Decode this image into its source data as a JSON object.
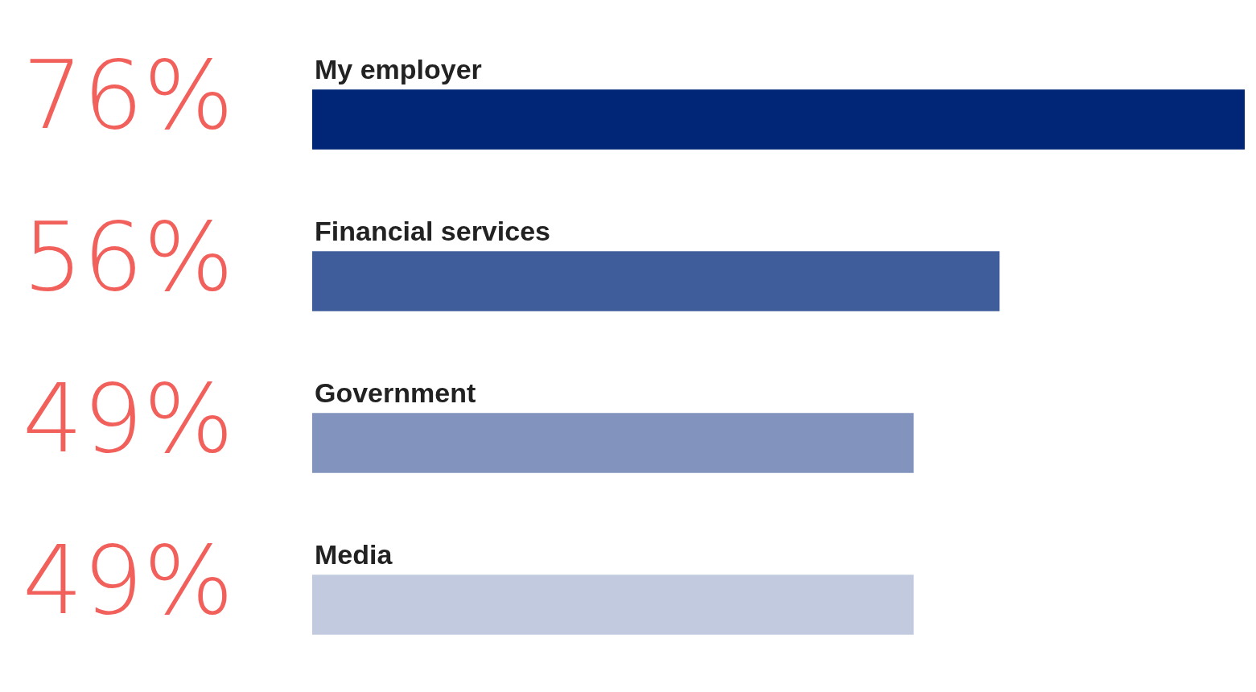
{
  "chart_data": {
    "type": "bar",
    "orientation": "horizontal",
    "categories": [
      "My employer",
      "Financial services",
      "Government",
      "Media"
    ],
    "values": [
      76,
      56,
      49,
      49
    ],
    "colors": [
      "#012677",
      "#3f5d9a",
      "#8294bd",
      "#c1cadf"
    ],
    "value_labels": [
      "76%",
      "56%",
      "49%",
      "49%"
    ],
    "xlim": [
      0,
      76
    ],
    "tick_labels": false,
    "legend": false
  }
}
